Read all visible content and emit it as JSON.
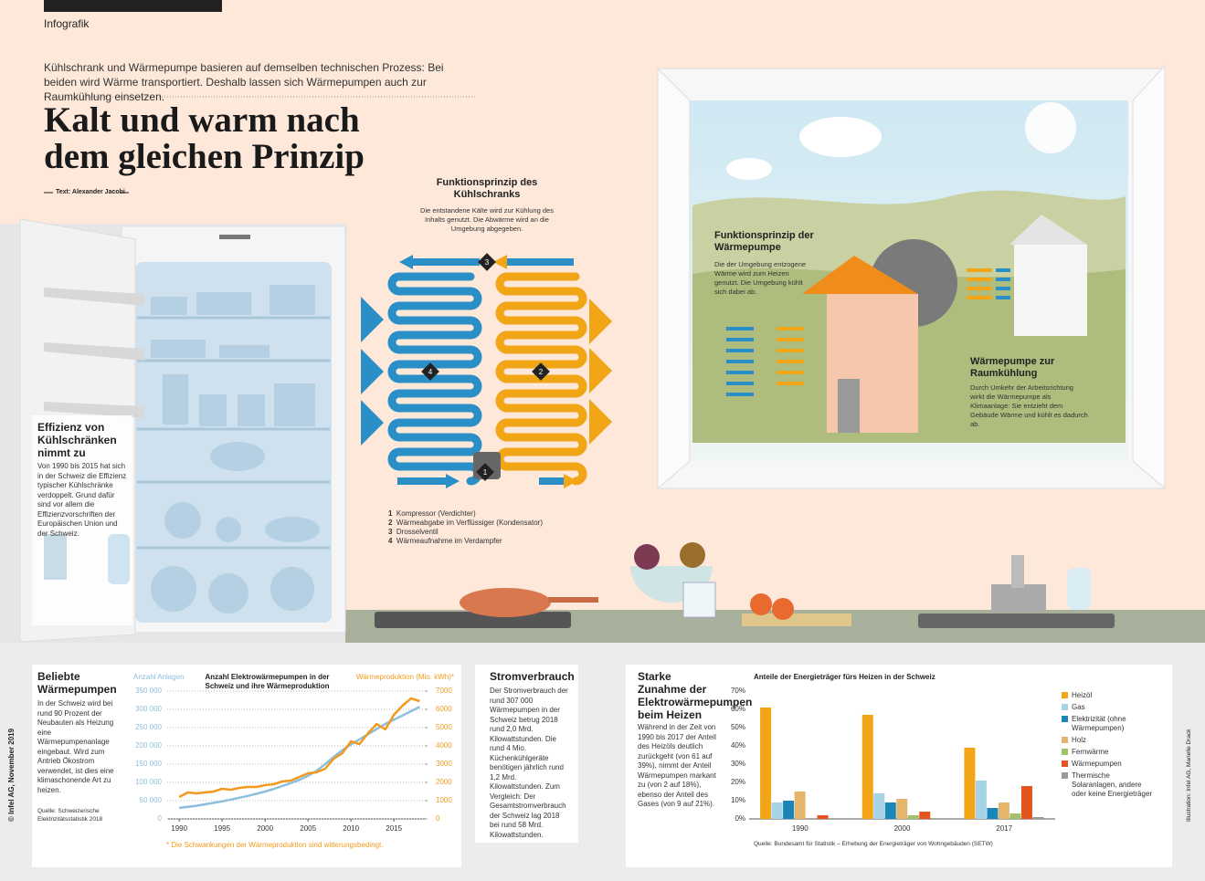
{
  "header": {
    "tag": "Infografik",
    "intro": "Kühlschrank und Wärmepumpe basieren auf demselben technischen Prozess: Bei beiden wird Wärme transportiert. Deshalb lassen sich Wärmepumpen auch zur Raumkühlung einsetzen.",
    "title": "Kalt und warm nach dem gleichen Prinzip",
    "author": "Text: Alexander Jacobi"
  },
  "fridge": {
    "title": "Effizienz von Kühlschränken nimmt zu",
    "text": "Von 1990 bis 2015 hat sich in der Schweiz die Effizienz typischer Kühlschränke verdoppelt. Grund dafür sind vor allem die Effizienzvorschriften der Europäischen Union und der Schweiz."
  },
  "principle": {
    "title": "Funktionsprinzip des Kühlschranks",
    "text": "Die entstandene Kälte wird zur Kühlung des Inhalts genutzt. Die Abwärme wird an die Umgebung abgegeben.",
    "steps": [
      {
        "num": 1,
        "label": "Kompressor (Verdichter)"
      },
      {
        "num": 2,
        "label": "Wärmeabgabe im Verflüssiger (Kondensator)"
      },
      {
        "num": 3,
        "label": "Drosselventil"
      },
      {
        "num": 4,
        "label": "Wärmeaufnahme im Verdampfer"
      }
    ]
  },
  "heatpump": {
    "title": "Funktionsprinzip der Wärmepumpe",
    "text": "Die der Umgebung entzogene Wärme wird zum Heizen genutzt. Die Umgebung kühlt sich dabei ab.",
    "cooling_title": "Wärmepumpe zur Raumkühlung",
    "cooling_text": "Durch Umkehr der Arbeitsrichtung wirkt die Wärmepumpe als Klimaanlage: Sie entzieht dem Gebäude Wärme und kühlt es dadurch ab."
  },
  "popular": {
    "title": "Beliebte Wärmepumpen",
    "text": "In der Schweiz wird bei rund 90 Prozent der Neubauten als Heizung eine Wärmepumpenanlage eingebaut. Wird zum Antrieb Ökostrom verwendet, ist dies eine klimaschonende Art zu heizen.",
    "source": "Quelle: Schweizerische Elektrizitätsstatistik 2018"
  },
  "power": {
    "title": "Stromverbrauch",
    "text": "Der Stromverbrauch der rund 307 000 Wärmepumpen in der Schweiz betrug 2018 rund 2,0 Mrd. Kilowattstunden. Die rund 4 Mio. Küchenkühlgeräte benötigen jährlich rund 1,2 Mrd. Kilowattstunden. Zum Vergleich: Der Gesamtstromverbrauch der Schweiz lag 2018 bei rund 58 Mrd. Kilowattstunden."
  },
  "increase": {
    "title": "Starke Zunahme der Elektrowärmepumpen beim Heizen",
    "text": "Während in der Zeit von 1990 bis 2017 der Anteil des Heizöls deutlich zurückgeht (von 61 auf 39%), nimmt der Anteil Wärmepumpen markant zu (von 2 auf 18%), ebenso der Anteil des Gases (von 9 auf 21%)."
  },
  "side": {
    "copyright": "© Infel AG, November 2019",
    "illustration": "Illustration: Infel AG, Marielle Drack"
  },
  "chart_data": [
    {
      "type": "line",
      "title": "Anzahl Elektrowärmepumpen in der Schweiz und ihre Wärmeproduktion",
      "footnote": "* Die Schwankungen der Wärmeproduktion sind witterungsbedingt.",
      "x": [
        1990,
        1991,
        1992,
        1993,
        1994,
        1995,
        1996,
        1997,
        1998,
        1999,
        2000,
        2001,
        2002,
        2003,
        2004,
        2005,
        2006,
        2007,
        2008,
        2009,
        2010,
        2011,
        2012,
        2013,
        2014,
        2015,
        2016,
        2017,
        2018
      ],
      "xlim": [
        1988.6,
        2018.6
      ],
      "xticks": [
        1990,
        1995,
        2000,
        2005,
        2010,
        2015
      ],
      "ylim": [
        0,
        350000
      ],
      "yticks": [
        {
          "value": 0,
          "label": "0"
        },
        {
          "value": 50000,
          "label": "50 000"
        },
        {
          "value": 100000,
          "label": "100 000"
        },
        {
          "value": 150000,
          "label": "150 000"
        },
        {
          "value": 200000,
          "label": "200 000"
        },
        {
          "value": 250000,
          "label": "250 000"
        },
        {
          "value": 300000,
          "label": "300 000"
        },
        {
          "value": 350000,
          "label": "350 000"
        }
      ],
      "y2lim": [
        0,
        7000
      ],
      "y2ticks": [
        0,
        1000,
        2000,
        3000,
        4000,
        5000,
        6000,
        7000
      ],
      "grid": true,
      "series": [
        {
          "name": "Anzahl Anlagen",
          "color": "#8cbfdd",
          "values": [
            30000,
            33000,
            36000,
            40000,
            44000,
            48000,
            53000,
            58000,
            63000,
            69000,
            75000,
            82000,
            90000,
            98000,
            107000,
            118000,
            132000,
            150000,
            170000,
            188000,
            204000,
            218000,
            232000,
            246000,
            260000,
            272000,
            283000,
            295000,
            307000
          ]
        },
        {
          "name": "Wärmeproduktion (Mio. kWh)*",
          "color": "#f29a1f",
          "axis": "y2",
          "values": [
            1200,
            1450,
            1400,
            1450,
            1500,
            1650,
            1600,
            1700,
            1750,
            1750,
            1850,
            1900,
            2050,
            2100,
            2300,
            2500,
            2550,
            2750,
            3300,
            3600,
            4250,
            4100,
            4700,
            5200,
            4900,
            5700,
            6200,
            6600,
            6450
          ]
        }
      ]
    },
    {
      "type": "bar",
      "title": "Anteile der Energieträger fürs Heizen in der Schweiz",
      "source": "Quelle: Bundesamt für Statistik – Erhebung der Energieträger von Wohngebäuden (SETW)",
      "categories": [
        "1990",
        "2000",
        "2017"
      ],
      "ylim": [
        0,
        70
      ],
      "yticks": [
        {
          "value": 0,
          "label": "0%"
        },
        {
          "value": 10,
          "label": "10%"
        },
        {
          "value": 20,
          "label": "20%"
        },
        {
          "value": 30,
          "label": "30%"
        },
        {
          "value": 40,
          "label": "40%"
        },
        {
          "value": 50,
          "label": "50%"
        },
        {
          "value": 60,
          "label": "60%"
        },
        {
          "value": 70,
          "label": "70%"
        }
      ],
      "grid": false,
      "series": [
        {
          "name": "Heizöl",
          "color": "#f2a516",
          "values": [
            61,
            57,
            39
          ]
        },
        {
          "name": "Gas",
          "color": "#a6d3e6",
          "values": [
            9,
            14,
            21
          ]
        },
        {
          "name": "Elektrizität (ohne Wärmepumpen)",
          "color": "#1a86b8",
          "values": [
            10,
            9,
            6
          ]
        },
        {
          "name": "Holz",
          "color": "#e3b66c",
          "values": [
            15,
            11,
            9
          ]
        },
        {
          "name": "Fernwärme",
          "color": "#a3c06a",
          "values": [
            0,
            2,
            3
          ]
        },
        {
          "name": "Wärmepumpen",
          "color": "#e5541c",
          "values": [
            2,
            4,
            18
          ]
        },
        {
          "name": "Thermische Solaranlagen, andere oder keine Energieträger",
          "color": "#9a9a9a",
          "values": [
            0,
            0,
            1
          ]
        }
      ]
    }
  ]
}
